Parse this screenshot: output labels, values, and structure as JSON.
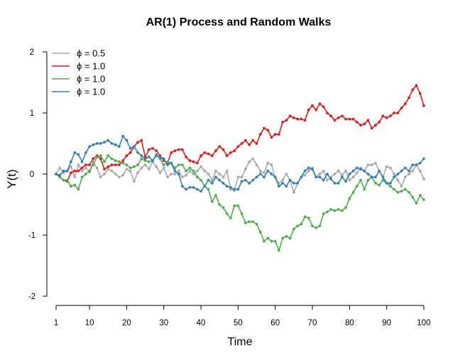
{
  "chart_data": {
    "type": "line",
    "title": "AR(1) Process and Random Walks",
    "xlabel": "Time",
    "ylabel": "Y(t)",
    "xlim": [
      1,
      100
    ],
    "ylim": [
      -2,
      2
    ],
    "x_ticks": [
      1,
      10,
      20,
      30,
      40,
      50,
      60,
      70,
      80,
      90,
      100
    ],
    "y_ticks": [
      -2,
      -1,
      0,
      1,
      2
    ],
    "legend_position": "top-left",
    "grid": false,
    "x": [
      1,
      2,
      3,
      4,
      5,
      6,
      7,
      8,
      9,
      10,
      11,
      12,
      13,
      14,
      15,
      16,
      17,
      18,
      19,
      20,
      21,
      22,
      23,
      24,
      25,
      26,
      27,
      28,
      29,
      30,
      31,
      32,
      33,
      34,
      35,
      36,
      37,
      38,
      39,
      40,
      41,
      42,
      43,
      44,
      45,
      46,
      47,
      48,
      49,
      50,
      51,
      52,
      53,
      54,
      55,
      56,
      57,
      58,
      59,
      60,
      61,
      62,
      63,
      64,
      65,
      66,
      67,
      68,
      69,
      70,
      71,
      72,
      73,
      74,
      75,
      76,
      77,
      78,
      79,
      80,
      81,
      82,
      83,
      84,
      85,
      86,
      87,
      88,
      89,
      90,
      91,
      92,
      93,
      94,
      95,
      96,
      97,
      98,
      99,
      100
    ],
    "series": [
      {
        "name": "ϕ = 0.5",
        "color": "#a9a9a9",
        "values": [
          0,
          0.1,
          0.02,
          0.05,
          0.12,
          -0.05,
          0.15,
          0.05,
          0.1,
          0.03,
          0.2,
          0.1,
          -0.05,
          0,
          0.08,
          0.05,
          0,
          -0.05,
          -0.02,
          0.08,
          0.05,
          -0.12,
          0.02,
          0.1,
          0.15,
          0.08,
          0.2,
          0.12,
          0.02,
          0.1,
          -0.05,
          0,
          0,
          0.05,
          -0.05,
          -0.02,
          0.05,
          0,
          0.05,
          0.12,
          0.05,
          0,
          -0.1,
          0.05,
          0,
          -0.05,
          0.05,
          -0.25,
          -0.27,
          -0.05,
          -0.05,
          0.08,
          0.2,
          0.25,
          0.15,
          0.05,
          0.02,
          0.18,
          0.15,
          -0.05,
          -0.15,
          -0.1,
          0,
          -0.1,
          -0.3,
          -0.15,
          -0.05,
          -0.02,
          0.05,
          0.1,
          -0.05,
          0,
          0.05,
          -0.1,
          -0.05,
          0,
          0.05,
          -0.02,
          0.05,
          -0.1,
          -0.05,
          0.02,
          0.1,
          0.05,
          0.15,
          0.15,
          0.18,
          0.05,
          -0.05,
          0.12,
          0.1,
          0,
          -0.1,
          -0.2,
          -0.05,
          0,
          0.05,
          0.15,
          0.05,
          -0.08
        ]
      },
      {
        "name": "ϕ = 1.0",
        "color": "#e41a1c",
        "values": [
          0,
          -0.05,
          -0.1,
          -0.12,
          0.02,
          0.05,
          0.05,
          0.1,
          0.15,
          0.15,
          0.25,
          0.3,
          0.25,
          0.08,
          0.12,
          0.15,
          0.15,
          0.15,
          0.22,
          0.3,
          0.35,
          0.45,
          0.52,
          0.55,
          0.28,
          0.4,
          0.42,
          0.38,
          0.3,
          0.22,
          0.18,
          0.35,
          0.38,
          0.4,
          0.4,
          0.28,
          0.22,
          0.2,
          0.18,
          0.3,
          0.35,
          0.33,
          0.3,
          0.38,
          0.45,
          0.4,
          0.3,
          0.35,
          0.38,
          0.45,
          0.5,
          0.55,
          0.48,
          0.55,
          0.5,
          0.65,
          0.75,
          0.72,
          0.6,
          0.65,
          0.65,
          0.85,
          0.88,
          0.95,
          0.92,
          0.9,
          0.9,
          0.88,
          1.05,
          1.12,
          1.05,
          1.15,
          1.1,
          1,
          0.95,
          0.88,
          0.92,
          0.95,
          0.9,
          0.9,
          0.9,
          0.85,
          0.8,
          0.82,
          0.88,
          0.75,
          0.8,
          0.85,
          0.95,
          0.92,
          0.95,
          1,
          1,
          1.08,
          1.15,
          1.25,
          1.38,
          1.45,
          1.32,
          1.12
        ]
      },
      {
        "name": "ϕ = 1.0",
        "color": "#4daf4a",
        "values": [
          0,
          -0.05,
          -0.1,
          -0.1,
          -0.2,
          -0.18,
          -0.25,
          -0.05,
          0,
          0.05,
          0.15,
          0.28,
          0.3,
          0.2,
          0.3,
          0.25,
          0.22,
          0.2,
          0.18,
          0.15,
          0.1,
          0.12,
          0.15,
          0.25,
          0.22,
          0.2,
          0.22,
          0.32,
          0.25,
          0.15,
          0.2,
          0.18,
          0.1,
          0.15,
          0.15,
          0.05,
          0.1,
          0.05,
          -0.05,
          -0.1,
          -0.2,
          -0.25,
          -0.45,
          -0.35,
          -0.5,
          -0.55,
          -0.65,
          -0.72,
          -0.52,
          -0.52,
          -0.65,
          -0.8,
          -0.78,
          -0.78,
          -0.82,
          -0.95,
          -1.1,
          -1.05,
          -1.1,
          -1.1,
          -1.25,
          -1.05,
          -1.02,
          -1.05,
          -0.9,
          -0.85,
          -0.82,
          -0.7,
          -0.72,
          -0.85,
          -0.88,
          -0.85,
          -0.65,
          -0.62,
          -0.58,
          -0.6,
          -0.58,
          -0.6,
          -0.55,
          -0.4,
          -0.3,
          -0.2,
          -0.1,
          -0.25,
          -0.1,
          -0.05,
          -0.15,
          -0.18,
          -0.1,
          -0.15,
          -0.2,
          -0.25,
          -0.3,
          -0.28,
          -0.25,
          -0.3,
          -0.38,
          -0.48,
          -0.35,
          -0.42
        ]
      },
      {
        "name": "ϕ = 1.0",
        "color": "#377eb8",
        "values": [
          0,
          -0.02,
          0.05,
          0.05,
          0.2,
          0.35,
          0.32,
          0.2,
          0.35,
          0.45,
          0.48,
          0.5,
          0.5,
          0.52,
          0.55,
          0.5,
          0.48,
          0.45,
          0.62,
          0.55,
          0.42,
          0.45,
          0.35,
          0.3,
          0.25,
          0.28,
          0.22,
          0.3,
          0.28,
          0.25,
          0.15,
          0.18,
          0.05,
          0,
          -0.2,
          -0.25,
          -0.22,
          -0.22,
          -0.25,
          -0.28,
          -0.2,
          -0.1,
          -0.15,
          -0.05,
          -0.1,
          -0.15,
          -0.2,
          -0.22,
          -0.25,
          -0.25,
          -0.12,
          -0.1,
          -0.15,
          -0.1,
          -0.05,
          0,
          -0.05,
          0.05,
          0,
          -0.05,
          -0.2,
          -0.15,
          -0.2,
          -0.1,
          -0.15,
          -0.15,
          -0.05,
          0.05,
          0.1,
          0.08,
          -0.05,
          -0.05,
          -0.1,
          0,
          -0.08,
          -0.15,
          -0.15,
          -0.05,
          -0.12,
          0,
          0.05,
          0.1,
          0.08,
          0.05,
          0,
          -0.05,
          -0.05,
          0.05,
          -0.05,
          -0.15,
          -0.15,
          -0.05,
          0,
          0.05,
          0.1,
          0.05,
          0.15,
          0.15,
          0.18,
          0.25
        ]
      }
    ]
  }
}
